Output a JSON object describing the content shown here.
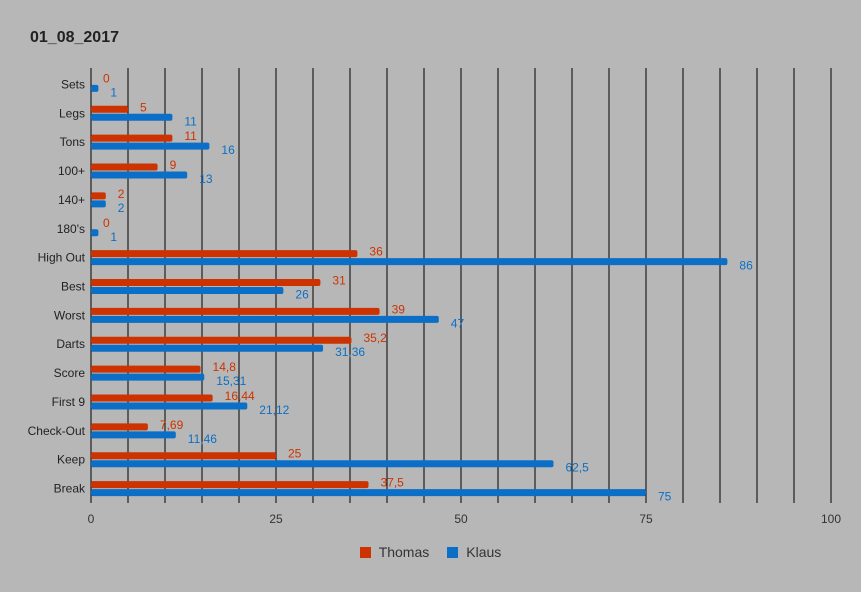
{
  "chart_data": {
    "type": "bar",
    "orientation": "horizontal",
    "title": "01_08_2017",
    "categories": [
      "Sets",
      "Legs",
      "Tons",
      "100+",
      "140+",
      "180's",
      "High Out",
      "Best",
      "Worst",
      "Darts",
      "Score",
      "First 9",
      "Check-Out",
      "Keep",
      "Break"
    ],
    "series": [
      {
        "name": "Thomas",
        "color": "#cc3300",
        "values": [
          0,
          5,
          11,
          9,
          2,
          0,
          36,
          31,
          39,
          35.2,
          14.8,
          16.44,
          7.69,
          25,
          37.5
        ],
        "labels": [
          "0",
          "5",
          "11",
          "9",
          "2",
          "0",
          "36",
          "31",
          "39",
          "35,2",
          "14,8",
          "16,44",
          "7,69",
          "25",
          "37,5"
        ]
      },
      {
        "name": "Klaus",
        "color": "#0b6fc7",
        "values": [
          1,
          11,
          16,
          13,
          2,
          1,
          86,
          26,
          47,
          31.36,
          15.31,
          21.12,
          11.46,
          62.5,
          75
        ],
        "labels": [
          "1",
          "11",
          "16",
          "13",
          "2",
          "1",
          "86",
          "26",
          "47",
          "31,36",
          "15,31",
          "21,12",
          "11,46",
          "62,5",
          "75"
        ]
      }
    ],
    "xlim": [
      0,
      100
    ],
    "x_ticks": [
      0,
      25,
      50,
      75,
      100
    ],
    "x_tick_labels": [
      "0",
      "25",
      "50",
      "75",
      "100"
    ],
    "gridline_step": 5,
    "grid": true,
    "legend_position": "bottom"
  }
}
